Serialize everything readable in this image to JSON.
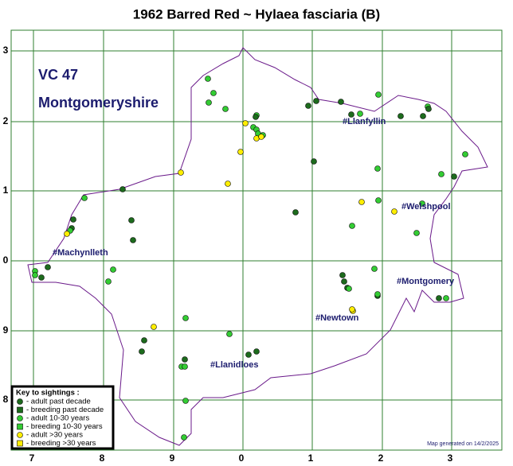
{
  "title": "1962 Barred Red ~ Hylaea fasciaria (B)",
  "vc": {
    "number": "VC 47",
    "name": "Montgomeryshire"
  },
  "towns": [
    "#Llanfyllin",
    "#Welshpool",
    "#Machynlleth",
    "#Montgomery",
    "#Newtown",
    "#Llanidloes"
  ],
  "grid_x_labels": [
    "7",
    "8",
    "9",
    "0",
    "1",
    "2",
    "3"
  ],
  "grid_y_labels": [
    "3",
    "2",
    "1",
    "0",
    "9",
    "8"
  ],
  "key": {
    "title": "Key to sightings :",
    "items": [
      "- adult past decade",
      "- breeding past decade",
      "- adult 10-30 years",
      "- breeding 10-30 years",
      "- adult >30 years",
      "- breeding >30 years"
    ]
  },
  "footer": "Map generated on 14/2/2025"
}
